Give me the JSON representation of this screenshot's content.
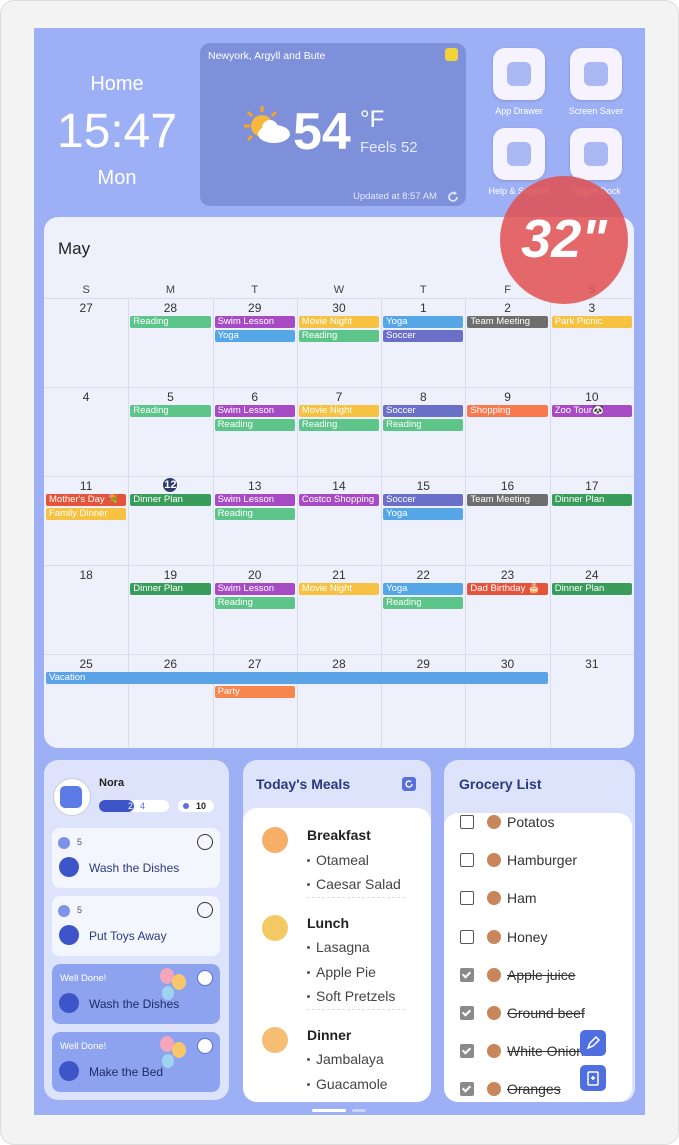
{
  "clock": {
    "location": "Home",
    "time": "15:47",
    "day": "Mon"
  },
  "weather": {
    "location": "Newyork, Argyll and Bute",
    "temperature": "54",
    "unit": "°F",
    "feels_like": "Feels 52",
    "updated": "Updated at 8:57 AM"
  },
  "apps": [
    "App Drawer",
    "Screen Saver",
    "Help & Support",
    "Toggle Dock"
  ],
  "badge": "32\"",
  "calendar": {
    "month": "May",
    "weekdays": [
      "S",
      "M",
      "T",
      "W",
      "T",
      "F",
      "S"
    ],
    "weeks": [
      {
        "days": [
          {
            "day": 27,
            "events": []
          },
          {
            "day": 28,
            "events": [
              {
                "title": "Reading",
                "color": "#5dc58a"
              }
            ]
          },
          {
            "day": 29,
            "events": [
              {
                "title": "Swim Lesson",
                "color": "#a64bc4"
              },
              {
                "title": "Yoga",
                "color": "#55a6e6"
              }
            ]
          },
          {
            "day": 30,
            "events": [
              {
                "title": "Movie Night",
                "color": "#f7c242"
              },
              {
                "title": "Reading",
                "color": "#5dc58a"
              }
            ]
          },
          {
            "day": 1,
            "events": [
              {
                "title": "Yoga",
                "color": "#55a6e6"
              },
              {
                "title": "Soccer",
                "color": "#6a6fc8"
              }
            ]
          },
          {
            "day": 2,
            "events": [
              {
                "title": "Team Meeting",
                "color": "#6e6e6e"
              }
            ]
          },
          {
            "day": 3,
            "events": [
              {
                "title": "Park Picnic",
                "color": "#f7c242"
              }
            ]
          }
        ]
      },
      {
        "days": [
          {
            "day": 4,
            "events": []
          },
          {
            "day": 5,
            "events": [
              {
                "title": "Reading",
                "color": "#5dc58a"
              }
            ]
          },
          {
            "day": 6,
            "events": [
              {
                "title": "Swim Lesson",
                "color": "#a64bc4"
              },
              {
                "title": "Reading",
                "color": "#5dc58a"
              }
            ]
          },
          {
            "day": 7,
            "events": [
              {
                "title": "Movie Night",
                "color": "#f7c242"
              },
              {
                "title": "Reading",
                "color": "#5dc58a"
              }
            ]
          },
          {
            "day": 8,
            "events": [
              {
                "title": "Soccer",
                "color": "#6a6fc8"
              },
              {
                "title": "Reading",
                "color": "#5dc58a"
              }
            ]
          },
          {
            "day": 9,
            "events": [
              {
                "title": "Shopping",
                "color": "#f77a4e"
              }
            ]
          },
          {
            "day": 10,
            "events": [
              {
                "title": "Zoo Tour🐼",
                "color": "#a64bc4"
              }
            ]
          }
        ]
      },
      {
        "days": [
          {
            "day": 11,
            "events": [
              {
                "title": "Mother's Day 💐",
                "color": "#e5533b"
              },
              {
                "title": "Family Dinner",
                "color": "#f7c242"
              }
            ]
          },
          {
            "day": 12,
            "today": true,
            "events": [
              {
                "title": "Dinner Plan",
                "color": "#3a9c5a"
              }
            ]
          },
          {
            "day": 13,
            "events": [
              {
                "title": "Swim Lesson",
                "color": "#a64bc4"
              },
              {
                "title": "Reading",
                "color": "#5dc58a"
              }
            ]
          },
          {
            "day": 14,
            "events": [
              {
                "title": "Costco Shopping",
                "color": "#a64bc4"
              }
            ]
          },
          {
            "day": 15,
            "events": [
              {
                "title": "Soccer",
                "color": "#6a6fc8"
              },
              {
                "title": "Yoga",
                "color": "#55a6e6"
              }
            ]
          },
          {
            "day": 16,
            "events": [
              {
                "title": "Team Meeting",
                "color": "#6e6e6e"
              }
            ]
          },
          {
            "day": 17,
            "events": [
              {
                "title": "Dinner Plan",
                "color": "#3a9c5a"
              }
            ]
          }
        ]
      },
      {
        "days": [
          {
            "day": 18,
            "events": []
          },
          {
            "day": 19,
            "events": [
              {
                "title": "Dinner Plan",
                "color": "#3a9c5a"
              }
            ]
          },
          {
            "day": 20,
            "events": [
              {
                "title": "Swim Lesson",
                "color": "#a64bc4"
              },
              {
                "title": "Reading",
                "color": "#5dc58a"
              }
            ]
          },
          {
            "day": 21,
            "events": [
              {
                "title": "Movie Night",
                "color": "#f7c242"
              }
            ]
          },
          {
            "day": 22,
            "events": [
              {
                "title": "Yoga",
                "color": "#55a6e6"
              },
              {
                "title": "Reading",
                "color": "#5dc58a"
              }
            ]
          },
          {
            "day": 23,
            "events": [
              {
                "title": "Dad Birthday 🎂",
                "color": "#e5533b"
              }
            ]
          },
          {
            "day": 24,
            "events": [
              {
                "title": "Dinner Plan",
                "color": "#3a9c5a"
              }
            ]
          }
        ]
      },
      {
        "days": [
          {
            "day": 25,
            "events": [
              {
                "title": "Vacation",
                "color": "#5aa3e6",
                "span": 6
              }
            ]
          },
          {
            "day": 26,
            "events": []
          },
          {
            "day": 27,
            "events": [
              {
                "title": "Party",
                "color": "#f7854e"
              }
            ]
          },
          {
            "day": 28,
            "events": []
          },
          {
            "day": 29,
            "events": []
          },
          {
            "day": 30,
            "events": []
          },
          {
            "day": 31,
            "events": []
          }
        ]
      }
    ]
  },
  "chores": {
    "user": "Nora",
    "done": 2,
    "total": 4,
    "points": 10,
    "tasks": [
      {
        "points": 5,
        "title": "Wash the Dishes",
        "done": false
      },
      {
        "points": 5,
        "title": "Put Toys Away",
        "done": false
      },
      {
        "status": "Well Done!",
        "title": "Wash the Dishes",
        "done": true
      },
      {
        "status": "Well Done!",
        "title": "Make the Bed",
        "done": true
      }
    ]
  },
  "meals": {
    "title": "Today's Meals",
    "sections": [
      {
        "name": "Breakfast",
        "items": [
          "Otameal",
          "Caesar Salad"
        ]
      },
      {
        "name": "Lunch",
        "items": [
          "Lasagna",
          "Apple Pie",
          "Soft Pretzels"
        ]
      },
      {
        "name": "Dinner",
        "items": [
          "Jambalaya",
          "Guacamole"
        ]
      }
    ]
  },
  "grocery": {
    "title": "Grocery List",
    "items": [
      {
        "name": "Potatos",
        "checked": false
      },
      {
        "name": "Hamburger",
        "checked": false
      },
      {
        "name": "Ham",
        "checked": false
      },
      {
        "name": "Honey",
        "checked": false
      },
      {
        "name": "Apple juice",
        "checked": true
      },
      {
        "name": "Ground beef",
        "checked": true
      },
      {
        "name": "White Onion",
        "checked": true
      },
      {
        "name": "Oranges",
        "checked": true
      }
    ]
  }
}
